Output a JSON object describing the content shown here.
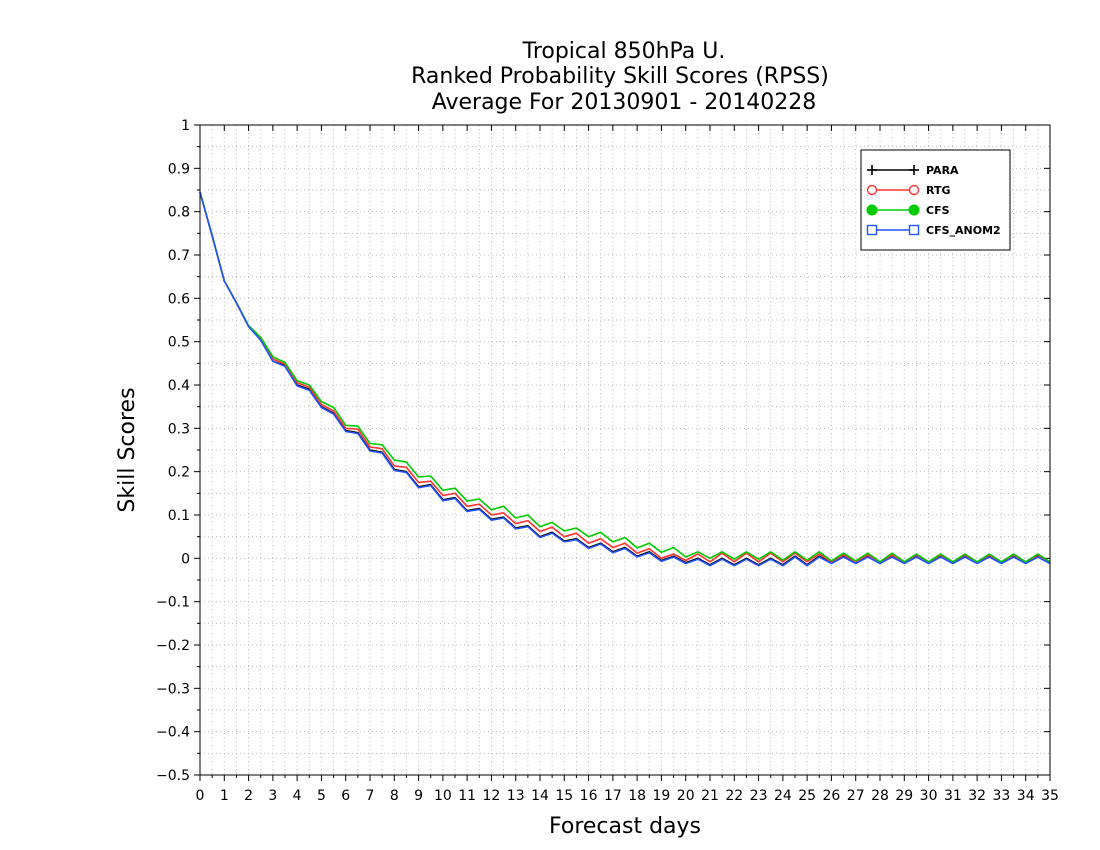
{
  "chart_data": {
    "type": "line",
    "title": [
      "Tropical 850hPa U.",
      "Ranked Probability Skill Scores (RPSS)",
      "Average For 20130901 - 20140228"
    ],
    "xlabel": "Forecast days",
    "ylabel": "Skill Scores",
    "xlim": [
      0,
      35
    ],
    "ylim": [
      -0.5,
      1
    ],
    "x_ticks": [
      0,
      1,
      2,
      3,
      4,
      5,
      6,
      7,
      8,
      9,
      10,
      11,
      12,
      13,
      14,
      15,
      16,
      17,
      18,
      19,
      20,
      21,
      22,
      23,
      24,
      25,
      26,
      27,
      28,
      29,
      30,
      31,
      32,
      33,
      34,
      35
    ],
    "x_tick_labels": [
      "0",
      "1",
      "2",
      "3",
      "4",
      "5",
      "6",
      "7",
      "8",
      "9",
      "10",
      "11",
      "12",
      "13",
      "14",
      "15",
      "16",
      "17",
      "18",
      "19",
      "20",
      "21",
      "22",
      "23",
      "24",
      "25",
      "26",
      "27",
      "28",
      "29",
      "30",
      "31",
      "32",
      "33",
      "34",
      "35"
    ],
    "y_ticks": [
      1,
      0.9,
      0.8,
      0.7,
      0.6,
      0.5,
      0.4,
      0.3,
      0.2,
      0.1,
      0,
      -0.1,
      -0.2,
      -0.3,
      -0.4,
      -0.5
    ],
    "y_tick_labels": [
      "1",
      "0.9",
      "0.8",
      "0.7",
      "0.6",
      "0.5",
      "0.4",
      "0.3",
      "0.2",
      "0.1",
      "0",
      "−0.1",
      "−0.2",
      "−0.3",
      "−0.4",
      "−0.5"
    ],
    "grid": true,
    "legend_position": "top-right",
    "x": [
      0,
      0.5,
      1,
      1.5,
      2,
      2.5,
      3,
      3.5,
      4,
      4.5,
      5,
      5.5,
      6,
      6.5,
      7,
      7.5,
      8,
      8.5,
      9,
      9.5,
      10,
      10.5,
      11,
      11.5,
      12,
      12.5,
      13,
      13.5,
      14,
      14.5,
      15,
      15.5,
      16,
      16.5,
      17,
      17.5,
      18,
      18.5,
      19,
      19.5,
      20,
      20.5,
      21,
      21.5,
      22,
      22.5,
      23,
      23.5,
      24,
      24.5,
      25,
      25.5,
      26,
      26.5,
      27,
      27.5,
      28,
      28.5,
      29,
      29.5,
      30,
      30.5,
      31,
      31.5,
      32,
      32.5,
      33,
      33.5,
      34,
      34.5,
      35
    ],
    "series": [
      {
        "name": "PARA",
        "color": "#000000",
        "marker": "plus",
        "values": [
          0.845,
          0.745,
          0.64,
          0.59,
          0.535,
          0.505,
          0.455,
          0.445,
          0.4,
          0.39,
          0.35,
          0.335,
          0.295,
          0.29,
          0.25,
          0.245,
          0.205,
          0.2,
          0.165,
          0.17,
          0.135,
          0.14,
          0.11,
          0.115,
          0.09,
          0.095,
          0.07,
          0.075,
          0.05,
          0.06,
          0.04,
          0.045,
          0.025,
          0.035,
          0.015,
          0.025,
          0.005,
          0.015,
          -0.005,
          0.005,
          -0.01,
          0.0,
          -0.015,
          0.0,
          -0.015,
          0.0,
          -0.015,
          0.0,
          -0.015,
          0.005,
          -0.015,
          0.005,
          -0.01,
          0.005,
          -0.01,
          0.005,
          -0.01,
          0.005,
          -0.01,
          0.005,
          -0.01,
          0.005,
          -0.01,
          0.005,
          -0.01,
          0.005,
          -0.01,
          0.005,
          -0.01,
          0.005,
          -0.01
        ]
      },
      {
        "name": "RTG",
        "color": "#ff3333",
        "marker": "open-circle",
        "values": [
          0.845,
          0.745,
          0.64,
          0.59,
          0.535,
          0.507,
          0.46,
          0.448,
          0.405,
          0.395,
          0.355,
          0.34,
          0.3,
          0.298,
          0.257,
          0.253,
          0.213,
          0.21,
          0.175,
          0.178,
          0.145,
          0.15,
          0.12,
          0.125,
          0.1,
          0.105,
          0.08,
          0.087,
          0.062,
          0.072,
          0.05,
          0.058,
          0.035,
          0.045,
          0.025,
          0.035,
          0.012,
          0.022,
          0.0,
          0.01,
          -0.005,
          0.01,
          -0.008,
          0.012,
          -0.008,
          0.012,
          -0.008,
          0.012,
          -0.008,
          0.012,
          -0.008,
          0.01,
          -0.008,
          0.008,
          -0.008,
          0.008,
          -0.01,
          0.008,
          -0.01,
          0.008,
          -0.01,
          0.008,
          -0.01,
          0.008,
          -0.01,
          0.008,
          -0.01,
          0.008,
          -0.01,
          0.008,
          -0.01
        ]
      },
      {
        "name": "CFS",
        "color": "#00cc00",
        "marker": "filled-circle",
        "values": [
          0.845,
          0.745,
          0.64,
          0.59,
          0.537,
          0.51,
          0.465,
          0.452,
          0.41,
          0.4,
          0.362,
          0.348,
          0.307,
          0.305,
          0.265,
          0.262,
          0.227,
          0.222,
          0.188,
          0.19,
          0.157,
          0.162,
          0.132,
          0.137,
          0.112,
          0.12,
          0.093,
          0.1,
          0.073,
          0.083,
          0.063,
          0.07,
          0.05,
          0.06,
          0.038,
          0.048,
          0.024,
          0.035,
          0.014,
          0.025,
          0.003,
          0.015,
          0.0,
          0.015,
          -0.002,
          0.015,
          -0.002,
          0.015,
          -0.004,
          0.015,
          -0.004,
          0.015,
          -0.006,
          0.012,
          -0.006,
          0.012,
          -0.008,
          0.012,
          -0.008,
          0.01,
          -0.008,
          0.01,
          -0.008,
          0.01,
          -0.008,
          0.01,
          -0.008,
          0.01,
          -0.008,
          0.01,
          -0.008
        ]
      },
      {
        "name": "CFS_ANOM2",
        "color": "#2255ff",
        "marker": "open-square",
        "values": [
          0.845,
          0.745,
          0.64,
          0.59,
          0.535,
          0.503,
          0.455,
          0.443,
          0.398,
          0.388,
          0.348,
          0.333,
          0.293,
          0.288,
          0.248,
          0.243,
          0.203,
          0.198,
          0.163,
          0.168,
          0.133,
          0.138,
          0.108,
          0.113,
          0.088,
          0.093,
          0.068,
          0.073,
          0.048,
          0.058,
          0.038,
          0.043,
          0.023,
          0.033,
          0.013,
          0.023,
          0.003,
          0.013,
          -0.007,
          0.003,
          -0.012,
          -0.002,
          -0.017,
          -0.002,
          -0.017,
          -0.002,
          -0.017,
          -0.002,
          -0.017,
          0.003,
          -0.017,
          0.003,
          -0.012,
          0.003,
          -0.012,
          0.003,
          -0.012,
          0.003,
          -0.012,
          0.003,
          -0.012,
          0.003,
          -0.012,
          0.003,
          -0.012,
          0.003,
          -0.012,
          0.003,
          -0.012,
          0.003,
          -0.012
        ]
      }
    ]
  }
}
